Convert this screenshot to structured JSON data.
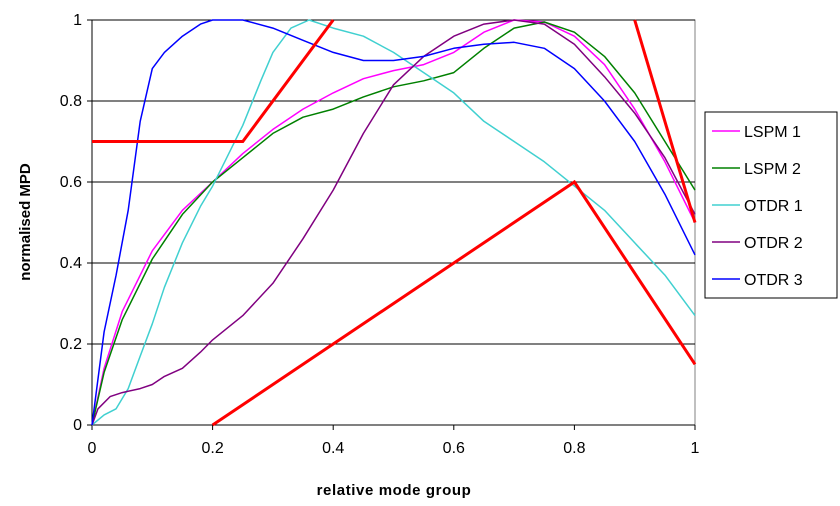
{
  "chart_data": {
    "type": "line",
    "xlabel": "relative mode group",
    "ylabel": "normalised MPD",
    "xlim": [
      0,
      1
    ],
    "ylim": [
      0,
      1
    ],
    "xticks": [
      "0",
      "0.2",
      "0.4",
      "0.6",
      "0.8",
      "1"
    ],
    "yticks": [
      "0",
      "0.2",
      "0.4",
      "0.6",
      "0.8",
      "1"
    ],
    "grid": "horizontal",
    "legend_position": "right",
    "series": [
      {
        "name": "LSPM 1",
        "color": "#ff00ff",
        "x": [
          0,
          0.02,
          0.05,
          0.1,
          0.15,
          0.2,
          0.25,
          0.3,
          0.35,
          0.4,
          0.45,
          0.5,
          0.55,
          0.6,
          0.65,
          0.7,
          0.75,
          0.8,
          0.85,
          0.9,
          0.95,
          1.0
        ],
        "y": [
          0,
          0.14,
          0.28,
          0.43,
          0.53,
          0.6,
          0.67,
          0.73,
          0.78,
          0.82,
          0.855,
          0.875,
          0.89,
          0.92,
          0.97,
          1.0,
          0.995,
          0.96,
          0.89,
          0.78,
          0.65,
          0.5
        ]
      },
      {
        "name": "LSPM 2",
        "color": "#008000",
        "x": [
          0,
          0.02,
          0.05,
          0.1,
          0.15,
          0.2,
          0.25,
          0.3,
          0.35,
          0.4,
          0.45,
          0.5,
          0.55,
          0.6,
          0.65,
          0.7,
          0.75,
          0.8,
          0.85,
          0.9,
          0.95,
          1.0
        ],
        "y": [
          0,
          0.13,
          0.26,
          0.41,
          0.52,
          0.6,
          0.66,
          0.72,
          0.76,
          0.78,
          0.81,
          0.835,
          0.85,
          0.87,
          0.93,
          0.98,
          0.995,
          0.97,
          0.91,
          0.82,
          0.7,
          0.58
        ]
      },
      {
        "name": "OTDR 1",
        "color": "#40d0d0",
        "x": [
          0,
          0.02,
          0.04,
          0.06,
          0.08,
          0.1,
          0.12,
          0.15,
          0.18,
          0.2,
          0.22,
          0.25,
          0.28,
          0.3,
          0.33,
          0.36,
          0.4,
          0.45,
          0.5,
          0.55,
          0.6,
          0.65,
          0.7,
          0.75,
          0.8,
          0.85,
          0.9,
          0.95,
          1.0
        ],
        "y": [
          0,
          0.025,
          0.04,
          0.09,
          0.17,
          0.25,
          0.34,
          0.45,
          0.54,
          0.59,
          0.65,
          0.74,
          0.85,
          0.92,
          0.98,
          1.0,
          0.98,
          0.96,
          0.92,
          0.87,
          0.82,
          0.75,
          0.7,
          0.65,
          0.59,
          0.53,
          0.45,
          0.37,
          0.27
        ]
      },
      {
        "name": "OTDR 2",
        "color": "#800080",
        "x": [
          0,
          0.01,
          0.03,
          0.05,
          0.08,
          0.1,
          0.12,
          0.15,
          0.18,
          0.2,
          0.25,
          0.3,
          0.35,
          0.4,
          0.45,
          0.5,
          0.55,
          0.6,
          0.65,
          0.7,
          0.75,
          0.8,
          0.85,
          0.9,
          0.95,
          1.0
        ],
        "y": [
          0,
          0.04,
          0.07,
          0.08,
          0.09,
          0.1,
          0.12,
          0.14,
          0.18,
          0.21,
          0.27,
          0.35,
          0.46,
          0.58,
          0.72,
          0.84,
          0.91,
          0.96,
          0.99,
          1.0,
          0.99,
          0.94,
          0.86,
          0.77,
          0.66,
          0.52
        ]
      },
      {
        "name": "OTDR 3",
        "color": "#0000ff",
        "x": [
          0,
          0.02,
          0.04,
          0.06,
          0.08,
          0.1,
          0.12,
          0.15,
          0.18,
          0.2,
          0.22,
          0.25,
          0.3,
          0.35,
          0.4,
          0.45,
          0.5,
          0.55,
          0.6,
          0.65,
          0.7,
          0.75,
          0.8,
          0.85,
          0.9,
          0.95,
          1.0
        ],
        "y": [
          0,
          0.23,
          0.37,
          0.53,
          0.75,
          0.88,
          0.92,
          0.96,
          0.99,
          1.0,
          1.0,
          1.0,
          0.98,
          0.95,
          0.92,
          0.9,
          0.9,
          0.91,
          0.93,
          0.94,
          0.945,
          0.93,
          0.88,
          0.8,
          0.7,
          0.57,
          0.42
        ]
      }
    ],
    "overlay_lines": [
      {
        "color": "#ff0000",
        "x": [
          0,
          0.25,
          0.4
        ],
        "y": [
          0.7,
          0.7,
          1.0
        ]
      },
      {
        "color": "#ff0000",
        "x": [
          0.2,
          0.8,
          1.0
        ],
        "y": [
          0,
          0.6,
          0.15
        ]
      },
      {
        "color": "#ff0000",
        "x": [
          0.9,
          1.0
        ],
        "y": [
          1.0,
          0.5
        ]
      }
    ]
  }
}
